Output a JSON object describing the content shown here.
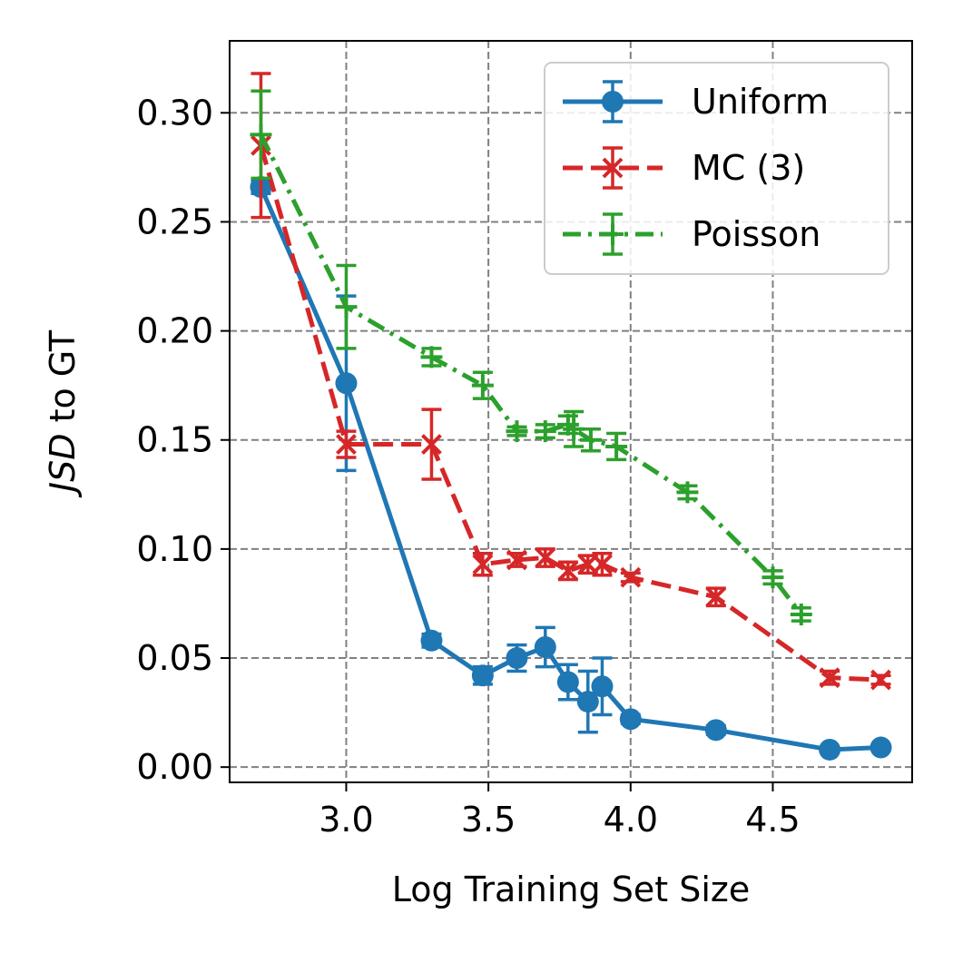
{
  "chart_data": {
    "type": "line",
    "xlabel": "Log Training Set Size",
    "ylabel_italic": "JSD",
    "ylabel_rest": " to GT",
    "xlim": [
      2.59,
      4.99
    ],
    "ylim": [
      -0.007,
      0.333
    ],
    "xticks": [
      3.0,
      3.5,
      4.0,
      4.5
    ],
    "xtick_labels": [
      "3.0",
      "3.5",
      "4.0",
      "4.5"
    ],
    "yticks": [
      0.0,
      0.05,
      0.1,
      0.15,
      0.2,
      0.25,
      0.3
    ],
    "ytick_labels": [
      "0.00",
      "0.05",
      "0.10",
      "0.15",
      "0.20",
      "0.25",
      "0.30"
    ],
    "grid": true,
    "legend_position": "top-right",
    "series": [
      {
        "name": "Uniform",
        "color": "#1f77b4",
        "linestyle": "solid",
        "marker": "circle",
        "points": [
          {
            "x": 2.7,
            "y": 0.266,
            "err": 0.003
          },
          {
            "x": 3.0,
            "y": 0.176,
            "err": 0.04
          },
          {
            "x": 3.3,
            "y": 0.058,
            "err": 0.003
          },
          {
            "x": 3.48,
            "y": 0.042,
            "err": 0.004
          },
          {
            "x": 3.6,
            "y": 0.05,
            "err": 0.006
          },
          {
            "x": 3.7,
            "y": 0.055,
            "err": 0.009
          },
          {
            "x": 3.78,
            "y": 0.039,
            "err": 0.008
          },
          {
            "x": 3.85,
            "y": 0.03,
            "err": 0.014
          },
          {
            "x": 3.9,
            "y": 0.037,
            "err": 0.013
          },
          {
            "x": 4.0,
            "y": 0.022,
            "err": 0.002
          },
          {
            "x": 4.3,
            "y": 0.017,
            "err": 0.002
          },
          {
            "x": 4.7,
            "y": 0.008,
            "err": 0.001
          },
          {
            "x": 4.88,
            "y": 0.009,
            "err": 0.001
          }
        ]
      },
      {
        "name": "MC (3)",
        "color": "#d62728",
        "linestyle": "dashed",
        "marker": "x",
        "points": [
          {
            "x": 2.7,
            "y": 0.285,
            "err": 0.033
          },
          {
            "x": 3.0,
            "y": 0.148,
            "err": 0.006
          },
          {
            "x": 3.3,
            "y": 0.148,
            "err": 0.016
          },
          {
            "x": 3.48,
            "y": 0.093,
            "err": 0.005
          },
          {
            "x": 3.6,
            "y": 0.095,
            "err": 0.003
          },
          {
            "x": 3.7,
            "y": 0.096,
            "err": 0.004
          },
          {
            "x": 3.78,
            "y": 0.09,
            "err": 0.004
          },
          {
            "x": 3.85,
            "y": 0.093,
            "err": 0.004
          },
          {
            "x": 3.9,
            "y": 0.093,
            "err": 0.005
          },
          {
            "x": 4.0,
            "y": 0.087,
            "err": 0.002
          },
          {
            "x": 4.3,
            "y": 0.078,
            "err": 0.004
          },
          {
            "x": 4.7,
            "y": 0.041,
            "err": 0.003
          },
          {
            "x": 4.88,
            "y": 0.04,
            "err": 0.002
          }
        ]
      },
      {
        "name": "Poisson",
        "color": "#2ca02c",
        "linestyle": "dashdot",
        "marker": "plus",
        "points": [
          {
            "x": 2.7,
            "y": 0.29,
            "err": 0.02
          },
          {
            "x": 3.0,
            "y": 0.211,
            "err": 0.019
          },
          {
            "x": 3.3,
            "y": 0.188,
            "err": 0.004
          },
          {
            "x": 3.48,
            "y": 0.175,
            "err": 0.006
          },
          {
            "x": 3.6,
            "y": 0.154,
            "err": 0.002
          },
          {
            "x": 3.7,
            "y": 0.154,
            "err": 0.003
          },
          {
            "x": 3.78,
            "y": 0.157,
            "err": 0.004
          },
          {
            "x": 3.8,
            "y": 0.155,
            "err": 0.008
          },
          {
            "x": 3.86,
            "y": 0.15,
            "err": 0.005
          },
          {
            "x": 3.95,
            "y": 0.147,
            "err": 0.006
          },
          {
            "x": 4.2,
            "y": 0.126,
            "err": 0.003
          },
          {
            "x": 4.5,
            "y": 0.087,
            "err": 0.003
          },
          {
            "x": 4.6,
            "y": 0.07,
            "err": 0.003
          }
        ]
      }
    ]
  }
}
